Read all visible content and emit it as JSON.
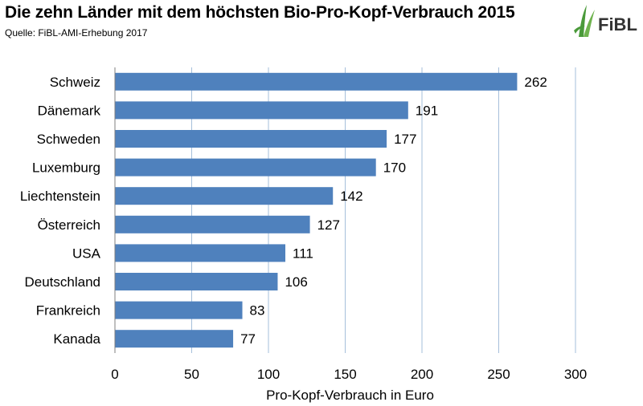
{
  "header": {
    "title": "Die zehn Länder mit dem höchsten Bio-Pro-Kopf-Verbrauch 2015",
    "source": "Quelle: FiBL-AMI-Erhebung 2017",
    "logo_text": "FiBL",
    "logo_color": "#4a9a3a"
  },
  "chart_data": {
    "type": "bar",
    "orientation": "horizontal",
    "categories": [
      "Schweiz",
      "Dänemark",
      "Schweden",
      "Luxemburg",
      "Liechtenstein",
      "Österreich",
      "USA",
      "Deutschland",
      "Frankreich",
      "Kanada"
    ],
    "values": [
      262,
      191,
      177,
      170,
      142,
      127,
      111,
      106,
      83,
      77
    ],
    "xlabel": "Pro-Kopf-Verbrauch in Euro",
    "ylabel": "",
    "xlim": [
      0,
      300
    ],
    "xticks": [
      0,
      50,
      100,
      150,
      200,
      250,
      300
    ],
    "grid": true,
    "bar_color": "#4f81bd"
  }
}
